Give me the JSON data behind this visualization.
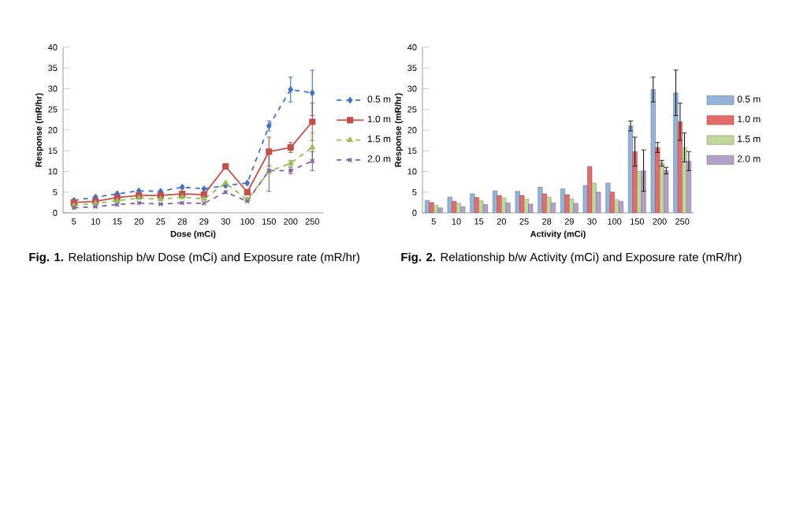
{
  "chart_data": [
    {
      "type": "line",
      "xlabel": "Dose (mCi)",
      "ylabel": "Response (mR/hr)",
      "categories": [
        "5",
        "10",
        "15",
        "20",
        "25",
        "28",
        "29",
        "30",
        "100",
        "150",
        "200",
        "250"
      ],
      "ylim": [
        0,
        40
      ],
      "yticks": [
        0,
        5,
        10,
        15,
        20,
        25,
        30,
        35,
        40
      ],
      "legend": "right",
      "series": [
        {
          "name": "0.5 m",
          "color": "#4472c4",
          "marker": "diamond",
          "line_style": "dashed",
          "values": [
            3,
            3.8,
            4.6,
            5.3,
            5.2,
            6.2,
            5.8,
            6.6,
            7.2,
            21,
            29.8,
            29
          ],
          "errors": [
            null,
            null,
            null,
            null,
            null,
            null,
            null,
            null,
            null,
            1.2,
            3,
            5.5
          ]
        },
        {
          "name": "1.0 m",
          "color": "#c0504d",
          "marker": "square",
          "line_style": "solid",
          "values": [
            2.5,
            2.8,
            3.7,
            4.2,
            4.2,
            4.6,
            4.4,
            11.2,
            5,
            14.8,
            15.8,
            22
          ],
          "errors": [
            null,
            null,
            null,
            null,
            null,
            null,
            null,
            null,
            null,
            3.5,
            1.2,
            4.5
          ]
        },
        {
          "name": "1.5 m",
          "color": "#9bbb59",
          "marker": "triangle",
          "line_style": "dashed",
          "values": [
            1.8,
            2.3,
            2.9,
            3.6,
            3.3,
            3.8,
            3.4,
            7.2,
            3.2,
            10,
            12,
            15.8
          ],
          "errors": [
            null,
            null,
            null,
            null,
            null,
            null,
            null,
            null,
            null,
            null,
            0.7,
            3.5
          ]
        },
        {
          "name": "2.0 m",
          "color": "#8064a2",
          "marker": "cross",
          "line_style": "dashed",
          "values": [
            1.2,
            1.5,
            2,
            2.4,
            2.1,
            2.4,
            2.3,
            5,
            2.8,
            10.2,
            10.2,
            12.5
          ],
          "errors": [
            null,
            null,
            null,
            null,
            null,
            null,
            null,
            null,
            null,
            5,
            0.8,
            2.3
          ]
        }
      ],
      "annotations": [
        "**Fig. 1.** Relationship b/w Dose (mCi) and Exposure rate (mR/hr)"
      ]
    },
    {
      "type": "bar",
      "xlabel": "Activity (mCi)",
      "ylabel": "Response (mR/hr)",
      "categories": [
        "5",
        "10",
        "15",
        "20",
        "25",
        "28",
        "29",
        "30",
        "100",
        "150",
        "200",
        "250"
      ],
      "ylim": [
        0,
        40
      ],
      "yticks": [
        0,
        5,
        10,
        15,
        20,
        25,
        30,
        35,
        40
      ],
      "legend": "right",
      "series": [
        {
          "name": "0.5 m",
          "color": "#95b3d7",
          "values": [
            3,
            3.8,
            4.6,
            5.3,
            5.2,
            6.2,
            5.8,
            6.6,
            7.2,
            21,
            29.8,
            29
          ],
          "errors": [
            null,
            null,
            null,
            null,
            null,
            null,
            null,
            null,
            null,
            1.2,
            3,
            5.5
          ]
        },
        {
          "name": "1.0 m",
          "color": "#e46c6a",
          "values": [
            2.5,
            2.8,
            3.7,
            4.2,
            4.2,
            4.6,
            4.4,
            11.2,
            5,
            14.8,
            15.8,
            22
          ],
          "errors": [
            null,
            null,
            null,
            null,
            null,
            null,
            null,
            null,
            null,
            3.5,
            1.2,
            4.5
          ]
        },
        {
          "name": "1.5 m",
          "color": "#c3d69b",
          "values": [
            1.8,
            2.3,
            2.9,
            3.6,
            3.3,
            3.8,
            3.4,
            7.2,
            3.2,
            10,
            12,
            15.8
          ],
          "errors": [
            null,
            null,
            null,
            null,
            null,
            null,
            null,
            null,
            null,
            null,
            0.7,
            3.5
          ]
        },
        {
          "name": "2.0 m",
          "color": "#b3a2c7",
          "values": [
            1.2,
            1.5,
            2,
            2.4,
            2.1,
            2.4,
            2.3,
            5,
            2.8,
            10.2,
            10.2,
            12.5
          ],
          "errors": [
            null,
            null,
            null,
            null,
            null,
            null,
            null,
            null,
            null,
            5,
            0.8,
            2.3
          ]
        }
      ],
      "annotations": [
        "**Fig. 2.** Relationship b/w Activity (mCi) and Exposure rate (mR/hr)"
      ]
    }
  ]
}
